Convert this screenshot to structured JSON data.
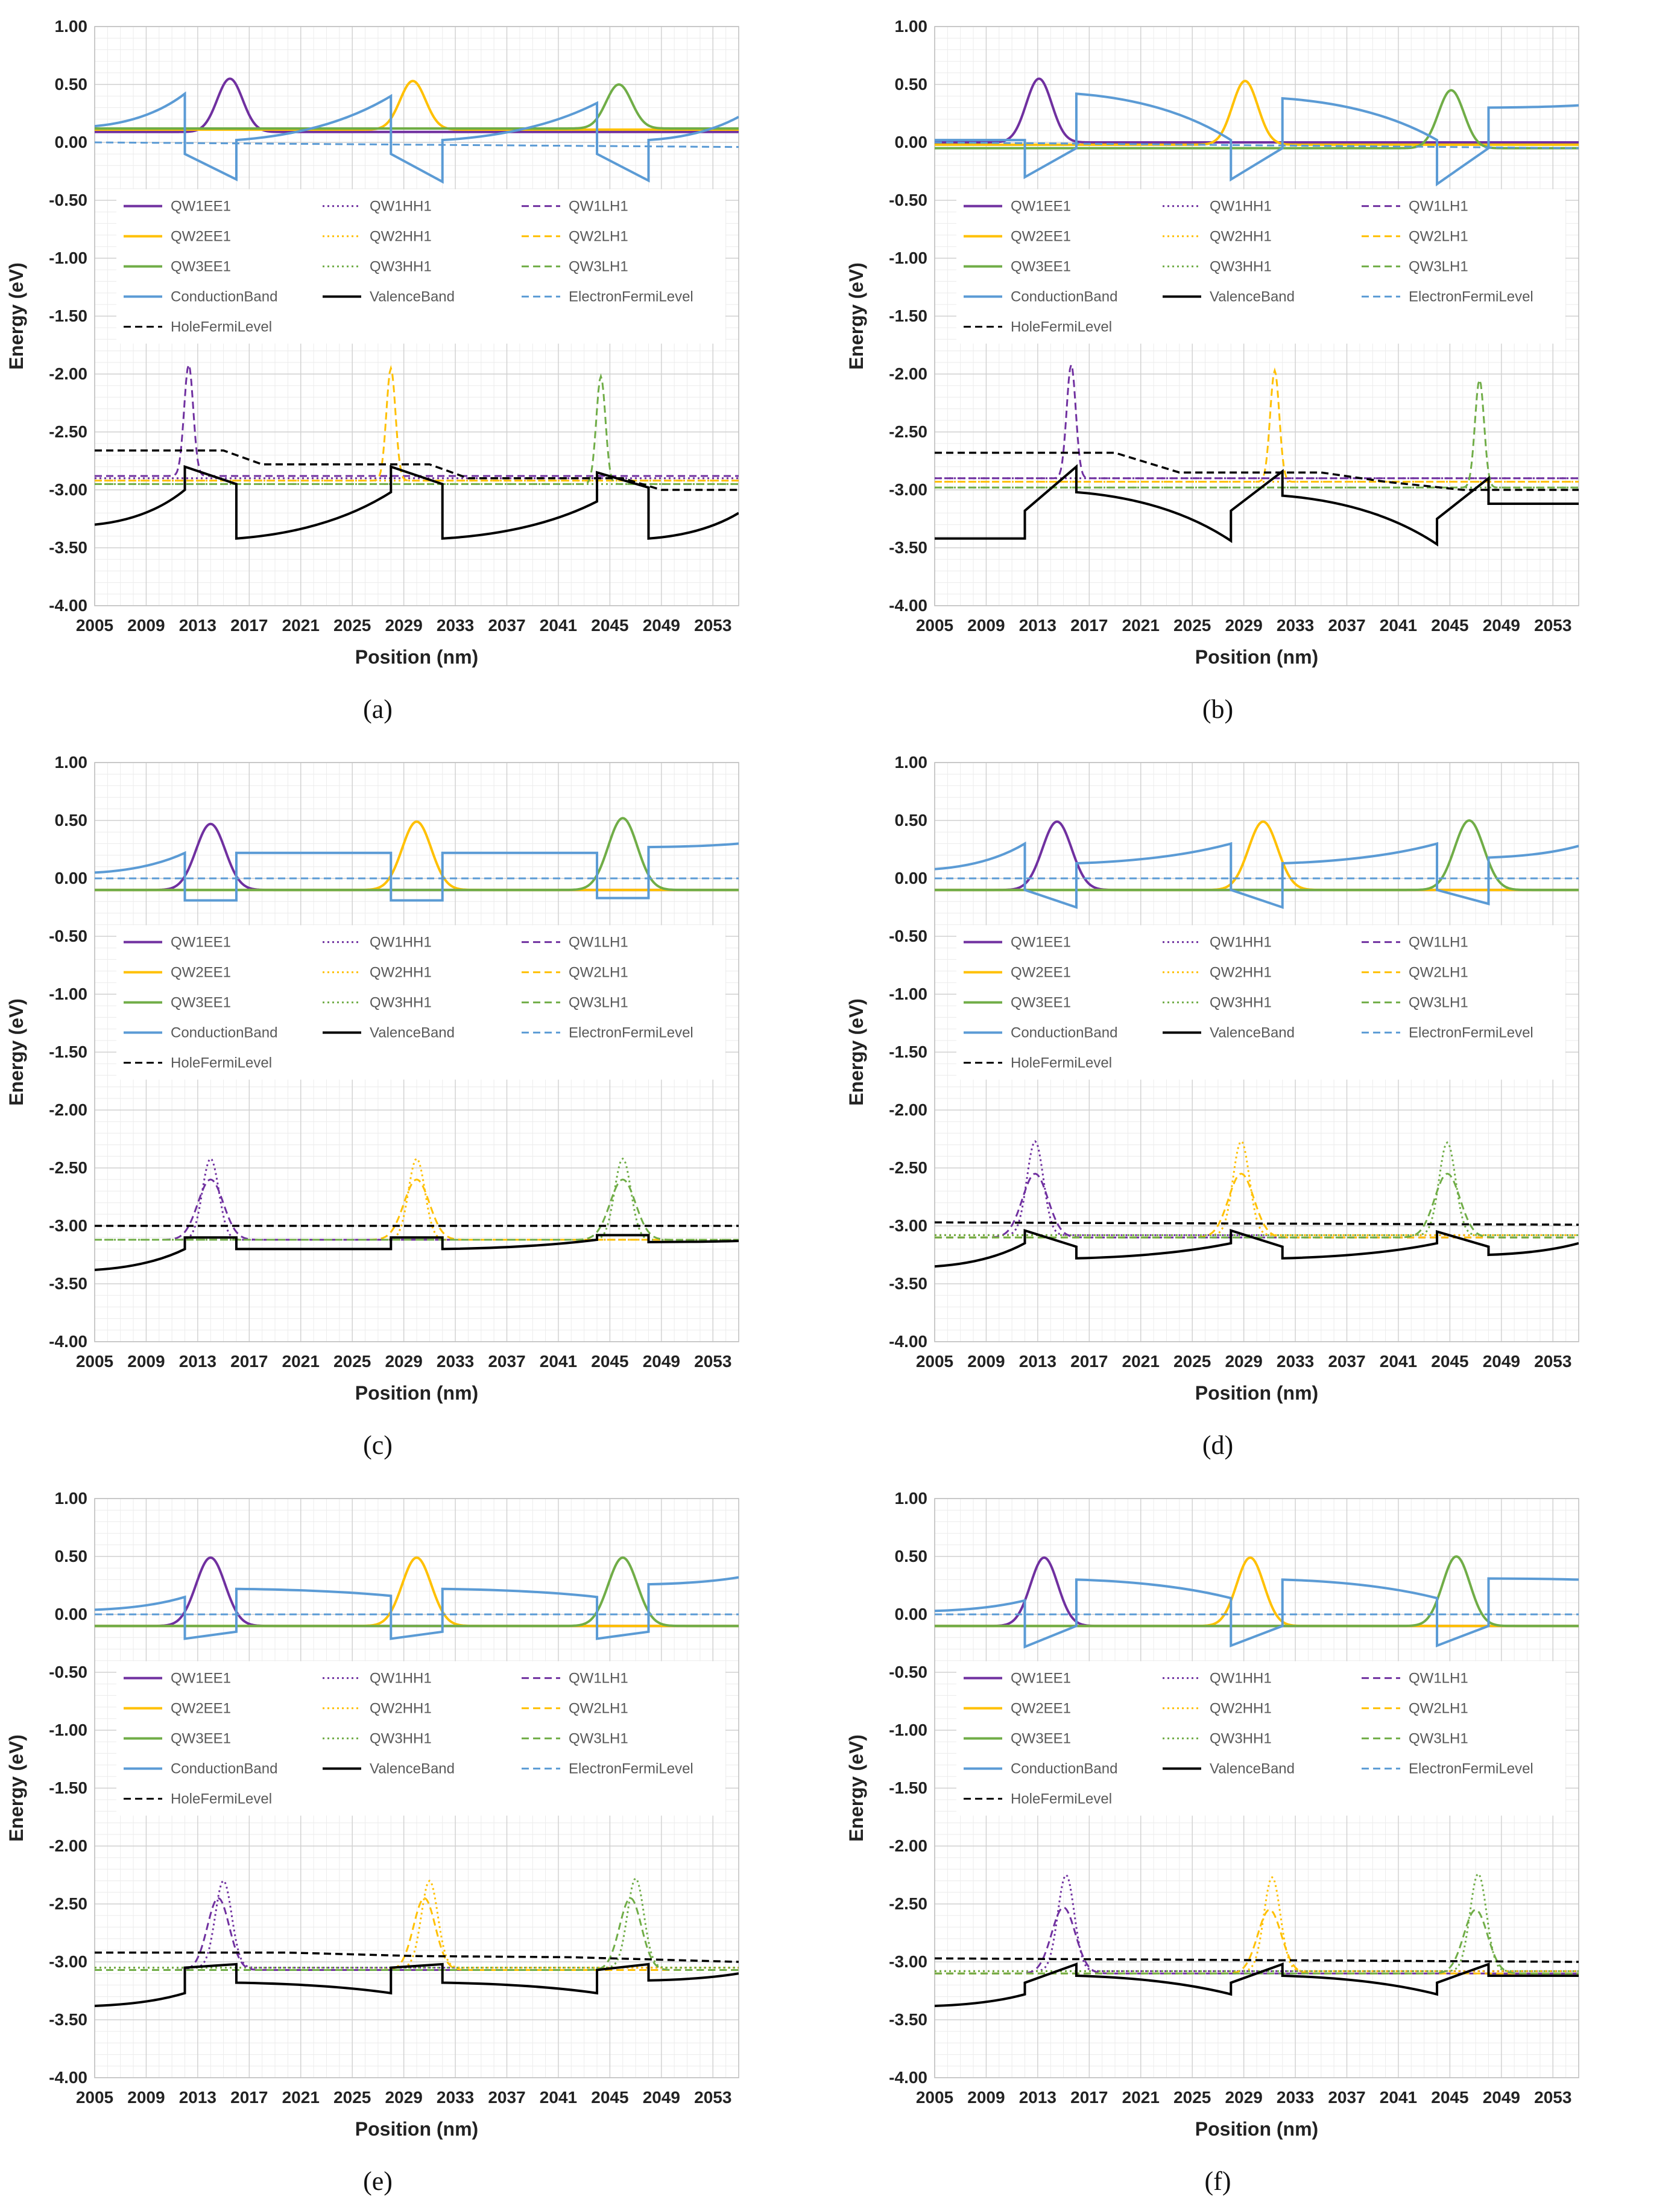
{
  "figure": {
    "legend_entries": [
      {
        "label": "QW1EE1",
        "color": "#7030a0",
        "style": "solid"
      },
      {
        "label": "QW1HH1",
        "color": "#7030a0",
        "style": "dotted"
      },
      {
        "label": "QW1LH1",
        "color": "#7030a0",
        "style": "dashed"
      },
      {
        "label": "QW2EE1",
        "color": "#ffc000",
        "style": "solid"
      },
      {
        "label": "QW2HH1",
        "color": "#ffc000",
        "style": "dotted"
      },
      {
        "label": "QW2LH1",
        "color": "#ffc000",
        "style": "dashed"
      },
      {
        "label": "QW3EE1",
        "color": "#70ad47",
        "style": "solid"
      },
      {
        "label": "QW3HH1",
        "color": "#70ad47",
        "style": "dotted"
      },
      {
        "label": "QW3LH1",
        "color": "#70ad47",
        "style": "dashed"
      },
      {
        "label": "ConductionBand",
        "color": "#5b9bd5",
        "style": "solid"
      },
      {
        "label": "ValenceBand",
        "color": "#000000",
        "style": "solid"
      },
      {
        "label": "ElectronFermiLevel",
        "color": "#5b9bd5",
        "style": "dashed"
      },
      {
        "label": "HoleFermiLevel",
        "color": "#000000",
        "style": "dashed"
      }
    ]
  },
  "chart_data": [
    {
      "panel": "a",
      "caption": "(a)",
      "type": "line",
      "title": "",
      "xlabel": "Position (nm)",
      "ylabel": "Energy (eV)",
      "xlim": [
        2005,
        2055
      ],
      "ylim": [
        -4.0,
        1.0
      ],
      "xticks": [
        2005,
        2009,
        2013,
        2017,
        2021,
        2025,
        2029,
        2033,
        2037,
        2041,
        2045,
        2049,
        2053
      ],
      "yticks": [
        1.0,
        0.5,
        0.0,
        -0.5,
        -1.0,
        -1.5,
        -2.0,
        -2.5,
        -3.0,
        -3.5,
        -4.0
      ],
      "wells": [
        [
          2012,
          2016
        ],
        [
          2028,
          2032
        ],
        [
          2044,
          2048
        ]
      ],
      "cb_barrier": [
        [
          0.14,
          0.42
        ],
        [
          0.02,
          0.4
        ],
        [
          0.02,
          0.34
        ],
        [
          0.02,
          0.22
        ]
      ],
      "cb_well": [
        [
          -0.1,
          -0.32
        ],
        [
          -0.1,
          -0.34
        ],
        [
          -0.1,
          -0.33
        ]
      ],
      "vb_barrier": [
        [
          -3.3,
          -3.0
        ],
        [
          -3.42,
          -3.02
        ],
        [
          -3.42,
          -3.1
        ],
        [
          -3.42,
          -3.2
        ]
      ],
      "vb_well": [
        [
          -2.8,
          -2.95
        ],
        [
          -2.8,
          -2.95
        ],
        [
          -2.85,
          -2.98
        ]
      ],
      "electron_fermi": [
        [
          2005,
          0.0
        ],
        [
          2055,
          -0.04
        ]
      ],
      "hole_fermi": [
        [
          2005,
          -2.66
        ],
        [
          2015,
          -2.66
        ],
        [
          2018,
          -2.78
        ],
        [
          2031,
          -2.78
        ],
        [
          2034,
          -2.9
        ],
        [
          2046,
          -2.9
        ],
        [
          2049,
          -3.0
        ],
        [
          2055,
          -3.0
        ]
      ],
      "ee_peaks": [
        [
          2015.5,
          0.55,
          0.09,
          1.4
        ],
        [
          2029.7,
          0.53,
          0.11,
          1.4
        ],
        [
          2045.7,
          0.5,
          0.12,
          1.4
        ]
      ],
      "hh_peaks": [
        [
          2012.3,
          -2.9,
          -2.9,
          0.5
        ],
        [
          2028.0,
          -2.92,
          -2.92,
          0.5
        ],
        [
          2044.3,
          -2.95,
          -2.95,
          0.5
        ]
      ],
      "lh_peaks": [
        [
          2012.3,
          -1.92,
          -2.88,
          0.5
        ],
        [
          2028.0,
          -1.95,
          -2.92,
          0.5
        ],
        [
          2044.3,
          -2.02,
          -2.95,
          0.5
        ]
      ]
    },
    {
      "panel": "b",
      "caption": "(b)",
      "type": "line",
      "title": "",
      "xlabel": "Position (nm)",
      "ylabel": "Energy (eV)",
      "xlim": [
        2005,
        2055
      ],
      "ylim": [
        -4.0,
        1.0
      ],
      "xticks": [
        2005,
        2009,
        2013,
        2017,
        2021,
        2025,
        2029,
        2033,
        2037,
        2041,
        2045,
        2049,
        2053
      ],
      "yticks": [
        1.0,
        0.5,
        0.0,
        -0.5,
        -1.0,
        -1.5,
        -2.0,
        -2.5,
        -3.0,
        -3.5,
        -4.0
      ],
      "wells": [
        [
          2012,
          2016
        ],
        [
          2028,
          2032
        ],
        [
          2044,
          2048
        ]
      ],
      "cb_barrier": [
        [
          0.02,
          0.02
        ],
        [
          0.42,
          0.02
        ],
        [
          0.38,
          0.02
        ],
        [
          0.3,
          0.32
        ]
      ],
      "cb_well": [
        [
          -0.3,
          -0.05
        ],
        [
          -0.32,
          -0.05
        ],
        [
          -0.36,
          -0.05
        ]
      ],
      "vb_barrier": [
        [
          -3.42,
          -3.42
        ],
        [
          -3.02,
          -3.44
        ],
        [
          -3.05,
          -3.47
        ],
        [
          -3.12,
          -3.12
        ]
      ],
      "vb_well": [
        [
          -3.18,
          -2.8
        ],
        [
          -3.18,
          -2.84
        ],
        [
          -3.25,
          -2.9
        ]
      ],
      "electron_fermi": [
        [
          2005,
          0.0
        ],
        [
          2055,
          -0.05
        ]
      ],
      "hole_fermi": [
        [
          2005,
          -2.68
        ],
        [
          2019,
          -2.68
        ],
        [
          2024,
          -2.85
        ],
        [
          2035,
          -2.85
        ],
        [
          2040,
          -2.93
        ],
        [
          2046,
          -3.0
        ],
        [
          2055,
          -3.0
        ]
      ],
      "ee_peaks": [
        [
          2013.1,
          0.55,
          0.0,
          1.4
        ],
        [
          2029.1,
          0.53,
          -0.02,
          1.4
        ],
        [
          2045.1,
          0.45,
          -0.05,
          1.4
        ]
      ],
      "hh_peaks": [
        [
          2015.6,
          -2.9,
          -2.9,
          0.5
        ],
        [
          2031.4,
          -2.93,
          -2.93,
          0.5
        ],
        [
          2047.3,
          -2.98,
          -2.98,
          0.5
        ]
      ],
      "lh_peaks": [
        [
          2015.6,
          -1.92,
          -2.9,
          0.5
        ],
        [
          2031.4,
          -1.97,
          -2.93,
          0.5
        ],
        [
          2047.3,
          -2.05,
          -2.98,
          0.5
        ]
      ]
    },
    {
      "panel": "c",
      "caption": "(c)",
      "type": "line",
      "title": "",
      "xlabel": "Position (nm)",
      "ylabel": "Energy (eV)",
      "xlim": [
        2005,
        2055
      ],
      "ylim": [
        -4.0,
        1.0
      ],
      "xticks": [
        2005,
        2009,
        2013,
        2017,
        2021,
        2025,
        2029,
        2033,
        2037,
        2041,
        2045,
        2049,
        2053
      ],
      "yticks": [
        1.0,
        0.5,
        0.0,
        -0.5,
        -1.0,
        -1.5,
        -2.0,
        -2.5,
        -3.0,
        -3.5,
        -4.0
      ],
      "wells": [
        [
          2012,
          2016
        ],
        [
          2028,
          2032
        ],
        [
          2044,
          2048
        ]
      ],
      "cb_barrier": [
        [
          0.05,
          0.22
        ],
        [
          0.22,
          0.22
        ],
        [
          0.22,
          0.22
        ],
        [
          0.27,
          0.3
        ]
      ],
      "cb_well": [
        [
          -0.19,
          -0.19
        ],
        [
          -0.19,
          -0.19
        ],
        [
          -0.17,
          -0.17
        ]
      ],
      "vb_barrier": [
        [
          -3.38,
          -3.2
        ],
        [
          -3.2,
          -3.2
        ],
        [
          -3.2,
          -3.12
        ],
        [
          -3.14,
          -3.13
        ]
      ],
      "vb_well": [
        [
          -3.1,
          -3.1
        ],
        [
          -3.1,
          -3.1
        ],
        [
          -3.08,
          -3.08
        ]
      ],
      "electron_fermi": [
        [
          2005,
          0.0
        ],
        [
          2055,
          0.0
        ]
      ],
      "hole_fermi": [
        [
          2005,
          -3.0
        ],
        [
          2055,
          -3.0
        ]
      ],
      "ee_peaks": [
        [
          2014.0,
          0.47,
          -0.1,
          1.6
        ],
        [
          2030.0,
          0.49,
          -0.1,
          1.6
        ],
        [
          2046.0,
          0.52,
          -0.1,
          1.6
        ]
      ],
      "hh_peaks": [
        [
          2014.0,
          -2.42,
          -3.12,
          0.9
        ],
        [
          2030.0,
          -2.42,
          -3.12,
          0.9
        ],
        [
          2046.0,
          -2.42,
          -3.12,
          0.9
        ]
      ],
      "lh_peaks": [
        [
          2014.0,
          -2.6,
          -3.12,
          1.4
        ],
        [
          2030.0,
          -2.6,
          -3.12,
          1.4
        ],
        [
          2046.0,
          -2.6,
          -3.12,
          1.4
        ]
      ]
    },
    {
      "panel": "d",
      "caption": "(d)",
      "type": "line",
      "title": "",
      "xlabel": "Position (nm)",
      "ylabel": "Energy (eV)",
      "xlim": [
        2005,
        2055
      ],
      "ylim": [
        -4.0,
        1.0
      ],
      "xticks": [
        2005,
        2009,
        2013,
        2017,
        2021,
        2025,
        2029,
        2033,
        2037,
        2041,
        2045,
        2049,
        2053
      ],
      "yticks": [
        1.0,
        0.5,
        0.0,
        -0.5,
        -1.0,
        -1.5,
        -2.0,
        -2.5,
        -3.0,
        -3.5,
        -4.0
      ],
      "wells": [
        [
          2012,
          2016
        ],
        [
          2028,
          2032
        ],
        [
          2044,
          2048
        ]
      ],
      "cb_barrier": [
        [
          0.08,
          0.3
        ],
        [
          0.13,
          0.3
        ],
        [
          0.13,
          0.3
        ],
        [
          0.18,
          0.28
        ]
      ],
      "cb_well": [
        [
          -0.1,
          -0.25
        ],
        [
          -0.1,
          -0.25
        ],
        [
          -0.1,
          -0.22
        ]
      ],
      "vb_barrier": [
        [
          -3.35,
          -3.15
        ],
        [
          -3.28,
          -3.15
        ],
        [
          -3.28,
          -3.15
        ],
        [
          -3.25,
          -3.15
        ]
      ],
      "vb_well": [
        [
          -3.04,
          -3.18
        ],
        [
          -3.04,
          -3.18
        ],
        [
          -3.05,
          -3.18
        ]
      ],
      "electron_fermi": [
        [
          2005,
          0.0
        ],
        [
          2055,
          0.0
        ]
      ],
      "hole_fermi": [
        [
          2005,
          -2.97
        ],
        [
          2055,
          -2.99
        ]
      ],
      "ee_peaks": [
        [
          2014.5,
          0.49,
          -0.1,
          1.6
        ],
        [
          2030.5,
          0.49,
          -0.1,
          1.6
        ],
        [
          2046.5,
          0.5,
          -0.1,
          1.6
        ]
      ],
      "hh_peaks": [
        [
          2012.8,
          -2.27,
          -3.08,
          0.9
        ],
        [
          2028.8,
          -2.27,
          -3.08,
          0.9
        ],
        [
          2044.8,
          -2.28,
          -3.08,
          0.9
        ]
      ],
      "lh_peaks": [
        [
          2012.8,
          -2.55,
          -3.1,
          1.4
        ],
        [
          2028.8,
          -2.55,
          -3.1,
          1.4
        ],
        [
          2044.8,
          -2.55,
          -3.1,
          1.4
        ]
      ]
    },
    {
      "panel": "e",
      "caption": "(e)",
      "type": "line",
      "title": "",
      "xlabel": "Position (nm)",
      "ylabel": "Energy (eV)",
      "xlim": [
        2005,
        2055
      ],
      "ylim": [
        -4.0,
        1.0
      ],
      "xticks": [
        2005,
        2009,
        2013,
        2017,
        2021,
        2025,
        2029,
        2033,
        2037,
        2041,
        2045,
        2049,
        2053
      ],
      "yticks": [
        1.0,
        0.5,
        0.0,
        -0.5,
        -1.0,
        -1.5,
        -2.0,
        -2.5,
        -3.0,
        -3.5,
        -4.0
      ],
      "wells": [
        [
          2012,
          2016
        ],
        [
          2028,
          2032
        ],
        [
          2044,
          2048
        ]
      ],
      "cb_barrier": [
        [
          0.04,
          0.15
        ],
        [
          0.22,
          0.16
        ],
        [
          0.22,
          0.15
        ],
        [
          0.26,
          0.32
        ]
      ],
      "cb_well": [
        [
          -0.21,
          -0.15
        ],
        [
          -0.21,
          -0.15
        ],
        [
          -0.21,
          -0.15
        ]
      ],
      "vb_barrier": [
        [
          -3.38,
          -3.27
        ],
        [
          -3.18,
          -3.27
        ],
        [
          -3.18,
          -3.27
        ],
        [
          -3.16,
          -3.1
        ]
      ],
      "vb_well": [
        [
          -3.05,
          -3.02
        ],
        [
          -3.05,
          -3.02
        ],
        [
          -3.07,
          -3.02
        ]
      ],
      "electron_fermi": [
        [
          2005,
          0.0
        ],
        [
          2055,
          0.0
        ]
      ],
      "hole_fermi": [
        [
          2005,
          -2.92
        ],
        [
          2020,
          -2.92
        ],
        [
          2030,
          -2.95
        ],
        [
          2042,
          -2.96
        ],
        [
          2055,
          -3.0
        ]
      ],
      "ee_peaks": [
        [
          2014.0,
          0.49,
          -0.1,
          1.6
        ],
        [
          2030.0,
          0.49,
          -0.1,
          1.6
        ],
        [
          2046.0,
          0.49,
          -0.1,
          1.6
        ]
      ],
      "hh_peaks": [
        [
          2015.0,
          -2.3,
          -3.05,
          0.9
        ],
        [
          2031.0,
          -2.3,
          -3.05,
          0.9
        ],
        [
          2047.0,
          -2.28,
          -3.05,
          0.9
        ]
      ],
      "lh_peaks": [
        [
          2014.6,
          -2.45,
          -3.07,
          1.2
        ],
        [
          2030.6,
          -2.45,
          -3.07,
          1.2
        ],
        [
          2046.6,
          -2.45,
          -3.07,
          1.2
        ]
      ]
    },
    {
      "panel": "f",
      "caption": "(f)",
      "type": "line",
      "title": "",
      "xlabel": "Position (nm)",
      "ylabel": "Energy (eV)",
      "xlim": [
        2005,
        2055
      ],
      "ylim": [
        -4.0,
        1.0
      ],
      "xticks": [
        2005,
        2009,
        2013,
        2017,
        2021,
        2025,
        2029,
        2033,
        2037,
        2041,
        2045,
        2049,
        2053
      ],
      "yticks": [
        1.0,
        0.5,
        0.0,
        -0.5,
        -1.0,
        -1.5,
        -2.0,
        -2.5,
        -3.0,
        -3.5,
        -4.0
      ],
      "wells": [
        [
          2012,
          2016
        ],
        [
          2028,
          2032
        ],
        [
          2044,
          2048
        ]
      ],
      "cb_barrier": [
        [
          0.03,
          0.12
        ],
        [
          0.3,
          0.14
        ],
        [
          0.3,
          0.14
        ],
        [
          0.31,
          0.3
        ]
      ],
      "cb_well": [
        [
          -0.28,
          -0.1
        ],
        [
          -0.27,
          -0.1
        ],
        [
          -0.27,
          -0.1
        ]
      ],
      "vb_barrier": [
        [
          -3.38,
          -3.28
        ],
        [
          -3.12,
          -3.28
        ],
        [
          -3.12,
          -3.28
        ],
        [
          -3.12,
          -3.12
        ]
      ],
      "vb_well": [
        [
          -3.18,
          -3.02
        ],
        [
          -3.18,
          -3.02
        ],
        [
          -3.18,
          -3.02
        ]
      ],
      "electron_fermi": [
        [
          2005,
          0.0
        ],
        [
          2055,
          0.0
        ]
      ],
      "hole_fermi": [
        [
          2005,
          -2.97
        ],
        [
          2055,
          -3.0
        ]
      ],
      "ee_peaks": [
        [
          2013.5,
          0.49,
          -0.1,
          1.5
        ],
        [
          2029.5,
          0.49,
          -0.1,
          1.5
        ],
        [
          2045.5,
          0.5,
          -0.1,
          1.5
        ]
      ],
      "hh_peaks": [
        [
          2015.2,
          -2.25,
          -3.08,
          0.9
        ],
        [
          2031.2,
          -2.27,
          -3.08,
          0.9
        ],
        [
          2047.2,
          -2.24,
          -3.08,
          0.9
        ]
      ],
      "lh_peaks": [
        [
          2015.0,
          -2.53,
          -3.1,
          1.3
        ],
        [
          2031.0,
          -2.55,
          -3.1,
          1.3
        ],
        [
          2047.0,
          -2.55,
          -3.1,
          1.3
        ]
      ]
    }
  ]
}
